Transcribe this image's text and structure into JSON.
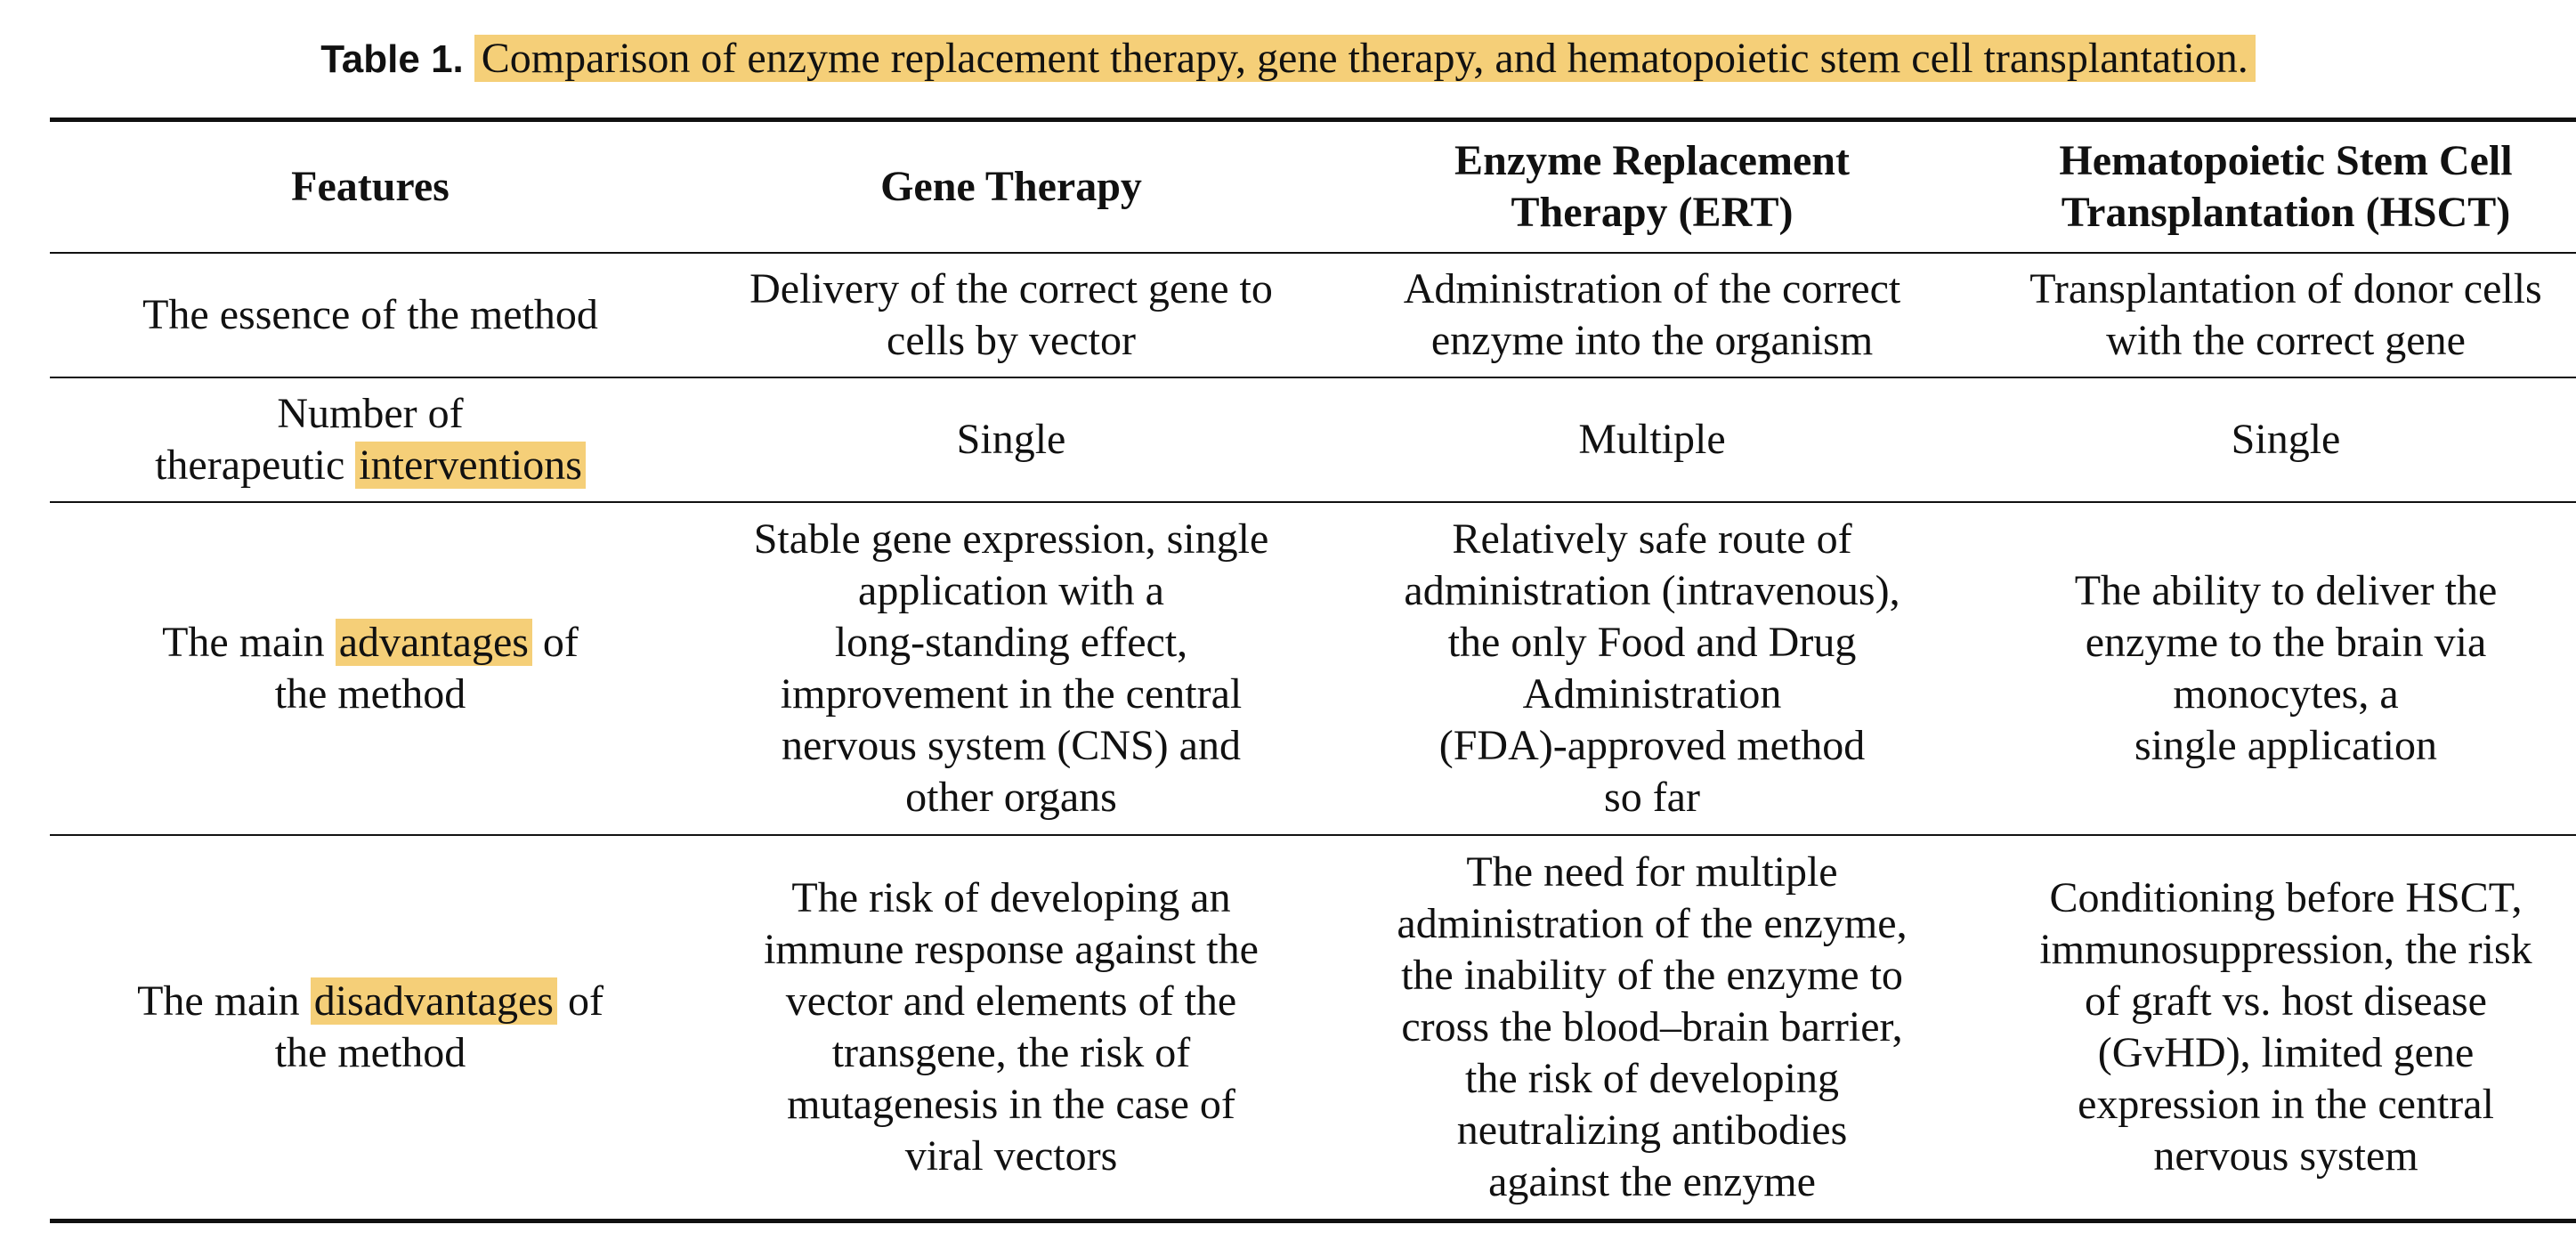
{
  "caption": {
    "label": "Table 1.",
    "text": "Comparison of enzyme replacement therapy, gene therapy, and hematopoietic stem cell transplantation."
  },
  "table": {
    "headers": [
      [
        "Features"
      ],
      [
        "Gene Therapy"
      ],
      [
        "Enzyme Replacement",
        "Therapy (ERT)"
      ],
      [
        "Hematopoietic Stem Cell",
        "Transplantation (HSCT)"
      ]
    ],
    "rows": [
      {
        "feature": [
          "The essence of the method"
        ],
        "gene_therapy": [
          "Delivery of the correct gene to",
          "cells by vector"
        ],
        "ert": [
          "Administration of the correct",
          "enzyme into the organism"
        ],
        "hsct": [
          "Transplantation of donor cells",
          "with the correct gene"
        ]
      },
      {
        "feature_line1": "Number of",
        "feature_line2_pre": "therapeutic ",
        "feature_line2_highlight": "interventions",
        "gene_therapy": [
          "Single"
        ],
        "ert": [
          "Multiple"
        ],
        "hsct": [
          "Single"
        ]
      },
      {
        "feature_line1_pre": "The main ",
        "feature_line1_highlight": "advantages",
        "feature_line1_post": " of",
        "feature_line2": "the method",
        "gene_therapy": [
          "Stable gene expression, single",
          "application with a",
          "long-standing effect,",
          "improvement in the central",
          "nervous system (CNS) and",
          "other organs"
        ],
        "ert": [
          "Relatively safe route of",
          "administration (intravenous),",
          "the only Food and Drug",
          "Administration",
          "(FDA)-approved method",
          "so far"
        ],
        "hsct": [
          "The ability to deliver the",
          "enzyme to the brain via",
          "monocytes, a",
          "single application"
        ]
      },
      {
        "feature_line1_pre": "The main ",
        "feature_line1_highlight": "disadvantages",
        "feature_line1_post": " of",
        "feature_line2": "the method",
        "gene_therapy": [
          "The risk of developing an",
          "immune response against the",
          "vector and elements of the",
          "transgene, the risk of",
          "mutagenesis in the case of",
          "viral vectors"
        ],
        "ert": [
          "The need for multiple",
          "administration of the enzyme,",
          "the inability of the enzyme to",
          "cross the blood–brain barrier,",
          "the risk of developing",
          "neutralizing antibodies",
          "against the enzyme"
        ],
        "hsct": [
          "Conditioning before HSCT,",
          "immunosuppression, the risk",
          "of graft vs. host disease",
          "(GvHD), limited gene",
          "expression in the central",
          "nervous system"
        ]
      }
    ]
  },
  "colors": {
    "highlight": "#f5cf78",
    "text": "#111111",
    "rule": "#111111"
  }
}
